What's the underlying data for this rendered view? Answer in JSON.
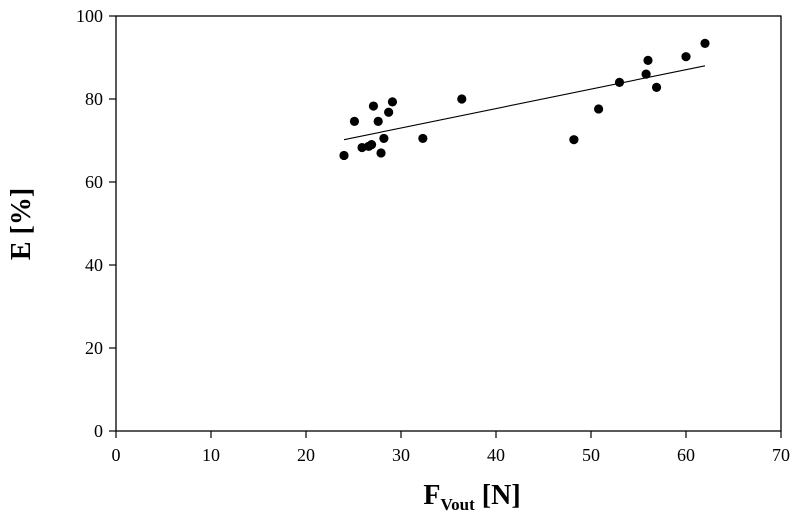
{
  "chart_data": {
    "type": "scatter",
    "xlabel": "F",
    "xlabel_sub": "Vout",
    "xlabel_unit": " [N]",
    "ylabel": "E [%]",
    "xlim": [
      0,
      70
    ],
    "ylim": [
      0,
      100
    ],
    "x_ticks": [
      "0",
      "10",
      "20",
      "30",
      "40",
      "50",
      "60",
      "70"
    ],
    "y_ticks": [
      "0",
      "20",
      "40",
      "60",
      "80",
      "100"
    ],
    "grid": false,
    "marker_color": "#000000",
    "points": [
      {
        "x": 24.0,
        "y": 66.4
      },
      {
        "x": 25.1,
        "y": 74.6
      },
      {
        "x": 25.9,
        "y": 68.3
      },
      {
        "x": 26.6,
        "y": 68.6
      },
      {
        "x": 26.9,
        "y": 69.0
      },
      {
        "x": 27.1,
        "y": 78.3
      },
      {
        "x": 27.6,
        "y": 74.6
      },
      {
        "x": 27.9,
        "y": 67.0
      },
      {
        "x": 28.2,
        "y": 70.5
      },
      {
        "x": 28.7,
        "y": 76.8
      },
      {
        "x": 29.1,
        "y": 79.3
      },
      {
        "x": 32.3,
        "y": 70.5
      },
      {
        "x": 36.4,
        "y": 80.0
      },
      {
        "x": 48.2,
        "y": 70.2
      },
      {
        "x": 50.8,
        "y": 77.6
      },
      {
        "x": 53.0,
        "y": 84.0
      },
      {
        "x": 55.8,
        "y": 86.0
      },
      {
        "x": 56.0,
        "y": 89.3
      },
      {
        "x": 56.9,
        "y": 82.8
      },
      {
        "x": 60.0,
        "y": 90.2
      },
      {
        "x": 62.0,
        "y": 93.4
      }
    ],
    "trendline": {
      "x": [
        24.0,
        62.0
      ],
      "y": [
        70.2,
        88.0
      ]
    }
  }
}
